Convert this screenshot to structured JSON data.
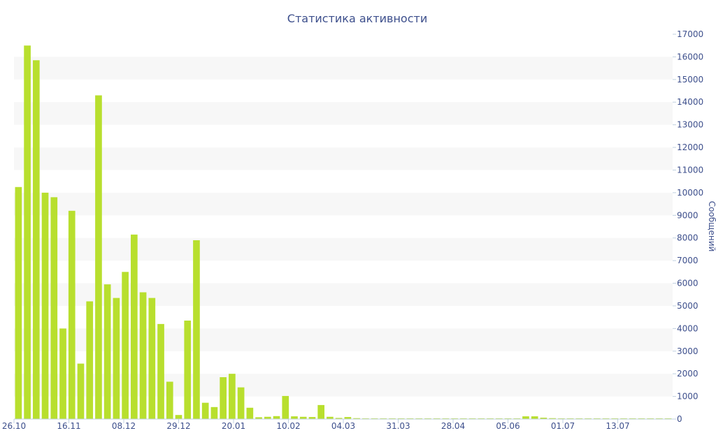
{
  "chart_data": {
    "type": "bar",
    "title": "Статистика активности",
    "xlabel": "",
    "ylabel": "Сообщений",
    "ylim": [
      0,
      17000
    ],
    "y_ticks": [
      0,
      1000,
      2000,
      3000,
      4000,
      5000,
      6000,
      7000,
      8000,
      9000,
      10000,
      11000,
      12000,
      13000,
      14000,
      15000,
      16000,
      17000
    ],
    "y_axis_side": "right",
    "grid": "alternating horizontal bands",
    "bar_color": "#b8df2e",
    "band_color": "#f7f7f7",
    "text_color": "#3d4f8c",
    "x_tick_labels": [
      "26.10",
      "16.11",
      "08.12",
      "29.12",
      "20.01",
      "10.02",
      "04.03",
      "31.03",
      "28.04",
      "05.06",
      "01.07",
      "13.07"
    ],
    "values": [
      10250,
      16500,
      15850,
      10000,
      9800,
      4000,
      9200,
      2450,
      5200,
      14300,
      5950,
      5350,
      6500,
      8150,
      5600,
      5350,
      4200,
      1650,
      180,
      4350,
      7900,
      720,
      530,
      1850,
      2000,
      1400,
      500,
      80,
      100,
      130,
      1020,
      120,
      100,
      90,
      620,
      100,
      50,
      90,
      40,
      30,
      30,
      30,
      30,
      30,
      30,
      30,
      30,
      30,
      30,
      30,
      30,
      30,
      30,
      30,
      30,
      30,
      30,
      120,
      120,
      60,
      40,
      30,
      30,
      30,
      30,
      30,
      30,
      30,
      30,
      30,
      30,
      30,
      30,
      30
    ]
  }
}
